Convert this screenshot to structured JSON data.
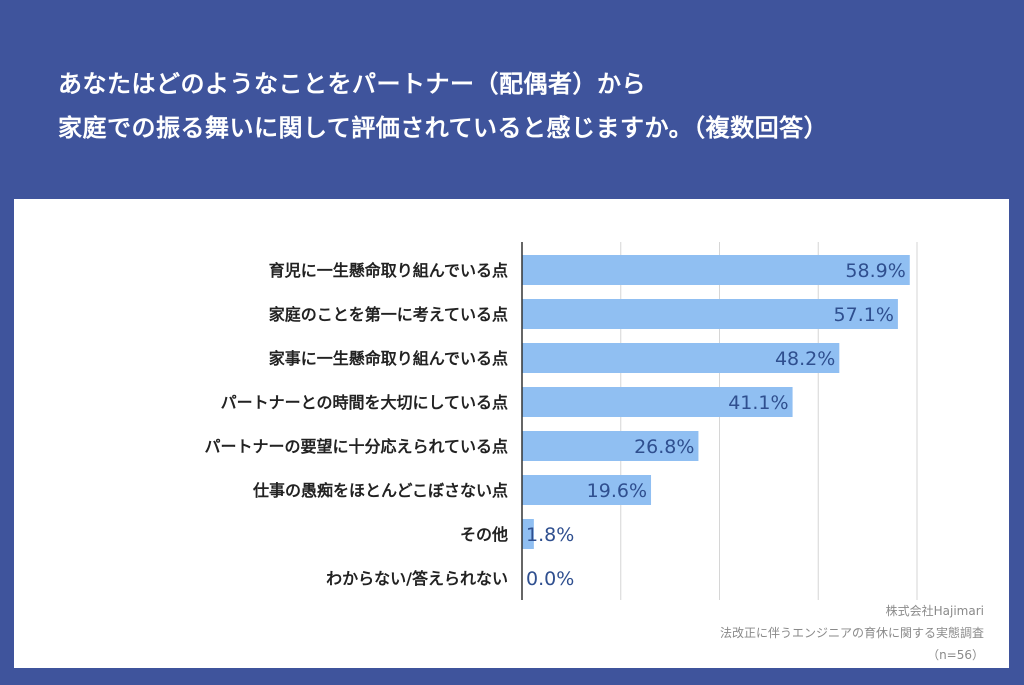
{
  "title_lines": [
    "あなたはどのようなことをパートナー（配偶者）から",
    "家庭での振る舞いに関して評価されていると感じますか。（複数回答）"
  ],
  "source": {
    "company": "株式会社Hajimari",
    "survey": "法改正に伴うエンジニアの育休に関する実態調査",
    "sample": "（n=56）"
  },
  "colors": {
    "background": "#3f549c",
    "bar": "#90bff2",
    "value_label": "#2f4f8f",
    "grid": "#d6d6d6"
  },
  "chart_data": {
    "type": "bar",
    "orientation": "horizontal",
    "title": "あなたはどのようなことをパートナー（配偶者）から家庭での振る舞いに関して評価されていると感じますか。（複数回答）",
    "categories": [
      "育児に一生懸命取り組んでいる点",
      "家庭のことを第一に考えている点",
      "家事に一生懸命取り組んでいる点",
      "パートナーとの時間を大切にしている点",
      "パートナーの要望に十分応えられている点",
      "仕事の愚痴をほとんどこぼさない点",
      "その他",
      "わからない/答えられない"
    ],
    "values": [
      58.9,
      57.1,
      48.2,
      41.1,
      26.8,
      19.6,
      1.8,
      0.0
    ],
    "value_labels": [
      "58.9%",
      "57.1%",
      "48.2%",
      "41.1%",
      "26.8%",
      "19.6%",
      "1.8%",
      "0.0%"
    ],
    "xlim": [
      0,
      60
    ],
    "grid": true,
    "gridlines_at": [
      0,
      15,
      30,
      45,
      60
    ],
    "legend": "none"
  }
}
